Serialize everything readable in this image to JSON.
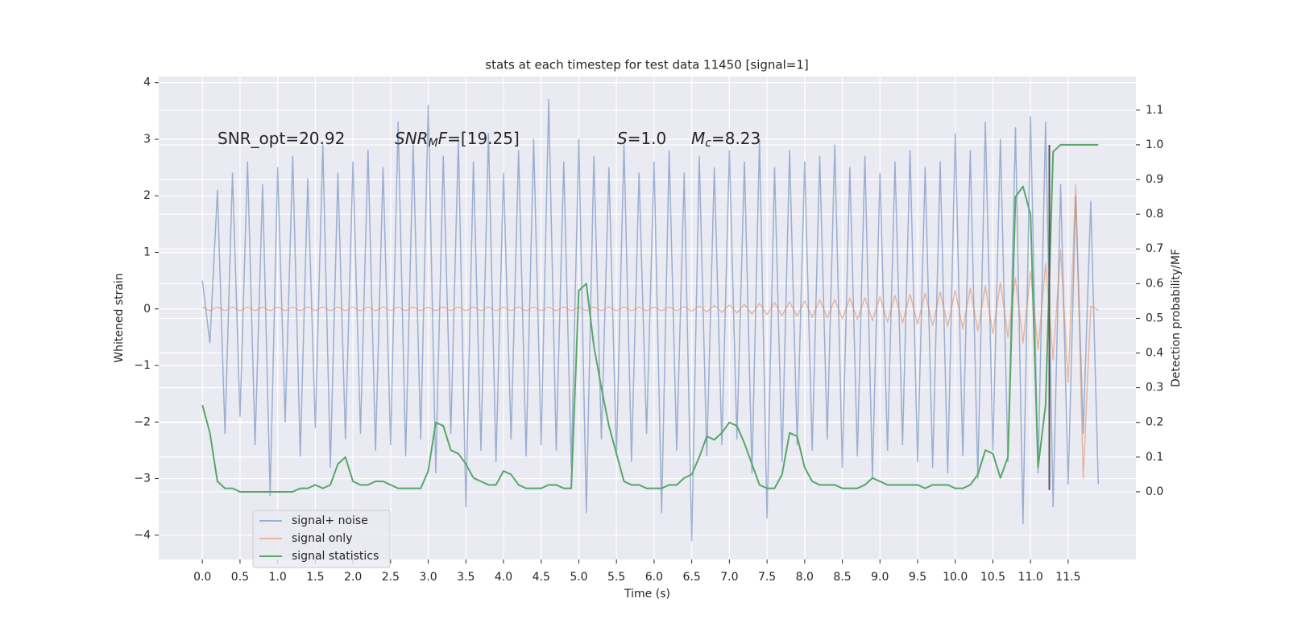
{
  "chart_data": {
    "type": "line",
    "title": "stats at each timestep for test data 11450 [signal=1]",
    "xlabel": "Time (s)",
    "ylabel": "Whitened strain",
    "y2label": "Detection probability/MF",
    "x": [
      0.0,
      0.1,
      0.2,
      0.3,
      0.4,
      0.5,
      0.6,
      0.7,
      0.8,
      0.9,
      1.0,
      1.1,
      1.2,
      1.3,
      1.4,
      1.5,
      1.6,
      1.7,
      1.8,
      1.9,
      2.0,
      2.1,
      2.2,
      2.3,
      2.4,
      2.5,
      2.6,
      2.7,
      2.8,
      2.9,
      3.0,
      3.1,
      3.2,
      3.3,
      3.4,
      3.5,
      3.6,
      3.7,
      3.8,
      3.9,
      4.0,
      4.1,
      4.2,
      4.3,
      4.4,
      4.5,
      4.6,
      4.7,
      4.8,
      4.9,
      5.0,
      5.1,
      5.2,
      5.3,
      5.4,
      5.5,
      5.6,
      5.7,
      5.8,
      5.9,
      6.0,
      6.1,
      6.2,
      6.3,
      6.4,
      6.5,
      6.6,
      6.7,
      6.8,
      6.9,
      7.0,
      7.1,
      7.2,
      7.3,
      7.4,
      7.5,
      7.6,
      7.7,
      7.8,
      7.9,
      8.0,
      8.1,
      8.2,
      8.3,
      8.4,
      8.5,
      8.6,
      8.7,
      8.8,
      8.9,
      9.0,
      9.1,
      9.2,
      9.3,
      9.4,
      9.5,
      9.6,
      9.7,
      9.8,
      9.9,
      10.0,
      10.1,
      10.2,
      10.3,
      10.4,
      10.5,
      10.6,
      10.7,
      10.8,
      10.9,
      11.0,
      11.1,
      11.2,
      11.3,
      11.4,
      11.5,
      11.6,
      11.7,
      11.8,
      11.9
    ],
    "series": [
      {
        "name": "signal+ noise",
        "color": "#4c72b0",
        "alpha": 0.5,
        "values": [
          0.5,
          -0.6,
          2.1,
          -2.2,
          2.4,
          -1.9,
          2.6,
          -2.4,
          2.2,
          -3.3,
          2.5,
          -2.0,
          2.7,
          -2.6,
          2.3,
          -2.1,
          2.9,
          -2.8,
          2.4,
          -2.3,
          2.6,
          -2.2,
          2.8,
          -2.5,
          2.5,
          -2.4,
          3.3,
          -2.6,
          2.9,
          -2.3,
          3.6,
          -2.9,
          2.7,
          -2.2,
          3.0,
          -3.5,
          2.6,
          -2.5,
          3.1,
          -2.7,
          2.4,
          -2.3,
          2.8,
          -2.6,
          3.0,
          -2.4,
          3.7,
          -2.5,
          2.6,
          -2.8,
          3.0,
          -3.6,
          2.7,
          -2.3,
          2.5,
          -2.6,
          2.9,
          -2.7,
          2.4,
          -2.2,
          2.6,
          -3.6,
          2.8,
          -2.5,
          2.4,
          -4.1,
          2.7,
          -2.6,
          2.5,
          -2.4,
          2.8,
          -2.3,
          2.6,
          -2.9,
          3.0,
          -3.7,
          2.5,
          -2.7,
          2.8,
          -2.4,
          2.6,
          -2.5,
          2.7,
          -2.3,
          2.9,
          -2.8,
          2.5,
          -2.6,
          2.7,
          -3.0,
          2.4,
          -2.5,
          2.6,
          -2.4,
          2.8,
          -2.7,
          2.5,
          -2.8,
          2.6,
          -2.9,
          3.1,
          -2.6,
          2.8,
          -3.0,
          3.3,
          -2.5,
          3.0,
          -2.7,
          3.2,
          -3.8,
          3.4,
          -2.9,
          3.3,
          -3.5,
          2.2,
          -3.1,
          2.0,
          -2.2,
          1.9,
          -3.1
        ]
      },
      {
        "name": "signal only",
        "color": "#dd8452",
        "alpha": 0.5,
        "values": [
          0.03,
          -0.03,
          0.03,
          -0.03,
          0.03,
          -0.03,
          0.03,
          -0.03,
          0.03,
          -0.03,
          0.03,
          -0.03,
          0.03,
          -0.03,
          0.03,
          -0.03,
          0.03,
          -0.03,
          0.03,
          -0.03,
          0.03,
          -0.03,
          0.03,
          -0.03,
          0.03,
          -0.03,
          0.03,
          -0.03,
          0.03,
          -0.03,
          0.03,
          -0.03,
          0.03,
          -0.03,
          0.03,
          -0.03,
          0.03,
          -0.03,
          0.03,
          -0.03,
          0.03,
          -0.03,
          0.03,
          -0.03,
          0.03,
          -0.03,
          0.03,
          -0.03,
          0.03,
          -0.03,
          0.03,
          -0.03,
          0.03,
          -0.03,
          0.03,
          -0.03,
          0.03,
          -0.03,
          0.03,
          -0.03,
          0.03,
          -0.03,
          0.03,
          -0.03,
          0.04,
          -0.04,
          0.05,
          -0.05,
          0.06,
          -0.06,
          0.07,
          -0.07,
          0.08,
          -0.09,
          0.1,
          -0.1,
          0.11,
          -0.12,
          0.13,
          -0.13,
          0.14,
          -0.15,
          0.16,
          -0.16,
          0.17,
          -0.18,
          0.19,
          -0.19,
          0.2,
          -0.21,
          0.22,
          -0.23,
          0.24,
          -0.25,
          0.26,
          -0.27,
          0.28,
          -0.29,
          0.3,
          -0.31,
          0.33,
          -0.35,
          0.37,
          -0.39,
          0.41,
          -0.44,
          0.47,
          -0.5,
          0.55,
          -0.6,
          0.66,
          -0.72,
          0.8,
          -0.9,
          1.05,
          -1.3,
          2.2,
          -3.0,
          0.05,
          -0.02
        ]
      },
      {
        "name": "signal statistics",
        "color": "#55a868",
        "alpha": 1,
        "axis": "y2",
        "values": [
          0.25,
          0.17,
          0.03,
          0.01,
          0.01,
          0.0,
          0.0,
          0.0,
          0.0,
          0.0,
          0.0,
          0.0,
          0.0,
          0.01,
          0.01,
          0.02,
          0.01,
          0.02,
          0.08,
          0.1,
          0.03,
          0.02,
          0.02,
          0.03,
          0.03,
          0.02,
          0.01,
          0.01,
          0.01,
          0.01,
          0.06,
          0.2,
          0.19,
          0.12,
          0.11,
          0.08,
          0.04,
          0.03,
          0.02,
          0.02,
          0.06,
          0.05,
          0.02,
          0.01,
          0.01,
          0.01,
          0.02,
          0.02,
          0.01,
          0.01,
          0.58,
          0.6,
          0.42,
          0.3,
          0.19,
          0.11,
          0.03,
          0.02,
          0.02,
          0.01,
          0.01,
          0.01,
          0.02,
          0.02,
          0.04,
          0.05,
          0.1,
          0.16,
          0.15,
          0.17,
          0.2,
          0.19,
          0.14,
          0.08,
          0.02,
          0.01,
          0.01,
          0.05,
          0.17,
          0.16,
          0.07,
          0.03,
          0.02,
          0.02,
          0.02,
          0.01,
          0.01,
          0.01,
          0.02,
          0.04,
          0.03,
          0.02,
          0.02,
          0.02,
          0.02,
          0.02,
          0.01,
          0.02,
          0.02,
          0.02,
          0.01,
          0.01,
          0.02,
          0.05,
          0.12,
          0.11,
          0.04,
          0.1,
          0.85,
          0.88,
          0.8,
          0.07,
          0.25,
          0.98,
          1.0,
          1.0,
          1.0,
          1.0,
          1.0,
          1.0
        ]
      }
    ],
    "vline": {
      "x": 11.25,
      "ymin": -3.2,
      "ymax": 2.9,
      "color": "#555555"
    },
    "annotations": [
      [
        {
          "text": "SNR_opt=20.92"
        }
      ],
      [
        {
          "text": "SNR",
          "style": "italic"
        },
        {
          "text": "M",
          "style": "italic-sub"
        },
        {
          "text": "F",
          "style": "italic"
        },
        {
          "text": "=[19.25]"
        }
      ],
      [
        {
          "text": "S",
          "style": "italic"
        },
        {
          "text": "=1.0"
        }
      ],
      [
        {
          "text": "M",
          "style": "italic"
        },
        {
          "text": "c",
          "style": "italic-sub"
        },
        {
          "text": "=8.23"
        }
      ]
    ],
    "xlim": [
      -0.58,
      12.4
    ],
    "ylim": [
      -4.43,
      4.11
    ],
    "y2lim": [
      -0.195,
      1.197
    ],
    "xticks": [
      {
        "value": 0,
        "label": "0.0"
      },
      {
        "value": 0.5,
        "label": "0.5"
      },
      {
        "value": 1,
        "label": "1.0"
      },
      {
        "value": 1.5,
        "label": "1.5"
      },
      {
        "value": 2,
        "label": "2.0"
      },
      {
        "value": 2.5,
        "label": "2.5"
      },
      {
        "value": 3,
        "label": "3.0"
      },
      {
        "value": 3.5,
        "label": "3.5"
      },
      {
        "value": 4,
        "label": "4.0"
      },
      {
        "value": 4.5,
        "label": "4.5"
      },
      {
        "value": 5,
        "label": "5.0"
      },
      {
        "value": 5.5,
        "label": "5.5"
      },
      {
        "value": 6,
        "label": "6.0"
      },
      {
        "value": 6.5,
        "label": "6.5"
      },
      {
        "value": 7,
        "label": "7.0"
      },
      {
        "value": 7.5,
        "label": "7.5"
      },
      {
        "value": 8,
        "label": "8.0"
      },
      {
        "value": 8.5,
        "label": "8.5"
      },
      {
        "value": 9,
        "label": "9.0"
      },
      {
        "value": 9.5,
        "label": "9.5"
      },
      {
        "value": 10,
        "label": "10.0"
      },
      {
        "value": 10.5,
        "label": "10.5"
      },
      {
        "value": 11,
        "label": "11.0"
      },
      {
        "value": 11.5,
        "label": "11.5"
      }
    ],
    "yticks": [
      {
        "value": -4,
        "label": "−4"
      },
      {
        "value": -3,
        "label": "−3"
      },
      {
        "value": -2,
        "label": "−2"
      },
      {
        "value": -1,
        "label": "−1"
      },
      0,
      1,
      2,
      3,
      4
    ],
    "y2ticks": [
      {
        "value": 0,
        "label": "0.0"
      },
      0.1,
      0.2,
      0.3,
      0.4,
      0.5,
      0.6,
      0.7,
      0.8,
      0.9,
      {
        "value": 1,
        "label": "1.0"
      },
      1.1
    ],
    "grid": true,
    "legend": "lower left",
    "background": "#eaeaf2"
  }
}
